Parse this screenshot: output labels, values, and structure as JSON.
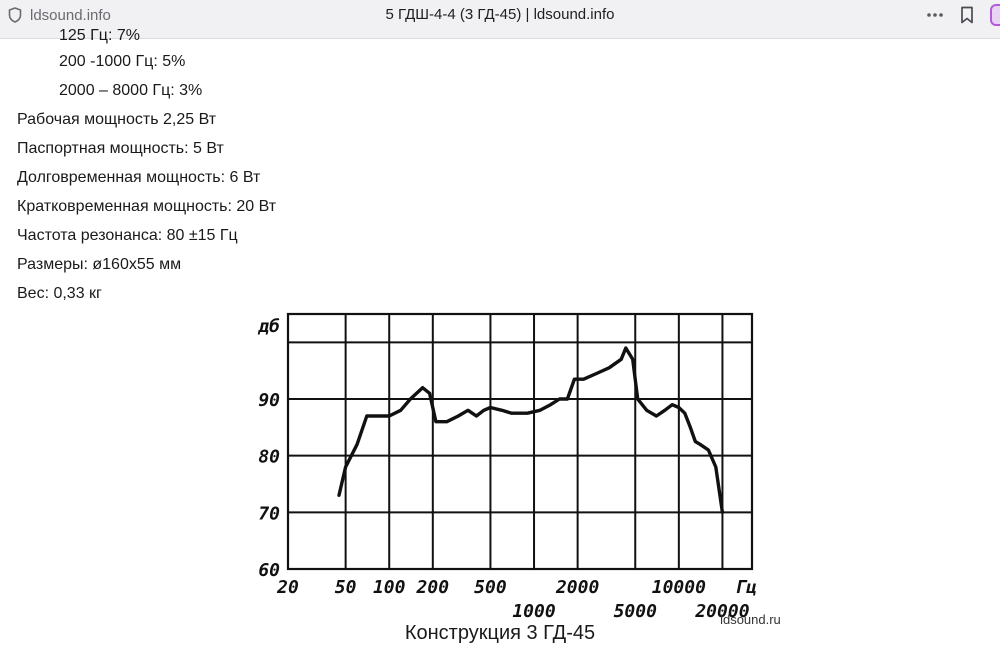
{
  "browser": {
    "site_name": "ldsound.info",
    "page_title": "5 ГДШ-4-4 (3 ГД-45) | ldsound.info",
    "icons": [
      "shield-icon",
      "more-icon",
      "bookmark-icon",
      "extension-icon"
    ]
  },
  "specs": {
    "cut_line": "125 Гц: 7%",
    "indented": [
      "200 -1000 Гц: 5%",
      "2000 – 8000 Гц: 3%"
    ],
    "items": [
      "Рабочая мощность 2,25 Вт",
      "Паспортная мощность: 5 Вт",
      "Долговременная мощность: 6 Вт",
      "Кратковременная мощность: 20 Вт",
      "Частота резонанса: 80 ±15 Гц",
      "Размеры: ø160x55 мм",
      "Вес: 0,33 кг"
    ]
  },
  "chart_data": {
    "type": "line",
    "ylabel": "дб",
    "xlabel": "Гц",
    "x_scale": "log",
    "xlim": [
      20,
      32000
    ],
    "ylim": [
      60,
      105
    ],
    "x_ticks_top": [
      "20",
      "50",
      "100",
      "200",
      "500",
      "2000",
      "10000"
    ],
    "x_ticks_bottom": [
      "1000",
      "5000",
      "20000"
    ],
    "y_ticks": [
      "60",
      "70",
      "80",
      "90"
    ],
    "grid": true,
    "watermark": "ldsound.ru",
    "series": [
      {
        "x": [
          45,
          50,
          60,
          70,
          80,
          100,
          120,
          140,
          170,
          190,
          210,
          250,
          300,
          350,
          400,
          450,
          500,
          600,
          700,
          900,
          1100,
          1300,
          1500,
          1700,
          1900,
          2200,
          2700,
          3300,
          4000,
          4300,
          4800,
          5200,
          6000,
          7000,
          8000,
          9000,
          10000,
          11000,
          12000,
          13000,
          14000,
          16000,
          18000,
          20000
        ],
        "y": [
          73,
          78,
          82,
          87,
          87,
          87,
          88,
          90,
          92,
          91,
          86,
          86,
          87,
          88,
          87,
          88,
          88.5,
          88,
          87.5,
          87.5,
          88,
          89,
          90,
          90,
          93.5,
          93.5,
          94.5,
          95.5,
          97,
          99,
          97,
          90,
          88,
          87,
          88,
          89,
          88.5,
          87.5,
          85,
          82.5,
          82,
          81,
          78,
          70
        ]
      }
    ]
  },
  "caption": "Конструкция 3 ГД-45"
}
